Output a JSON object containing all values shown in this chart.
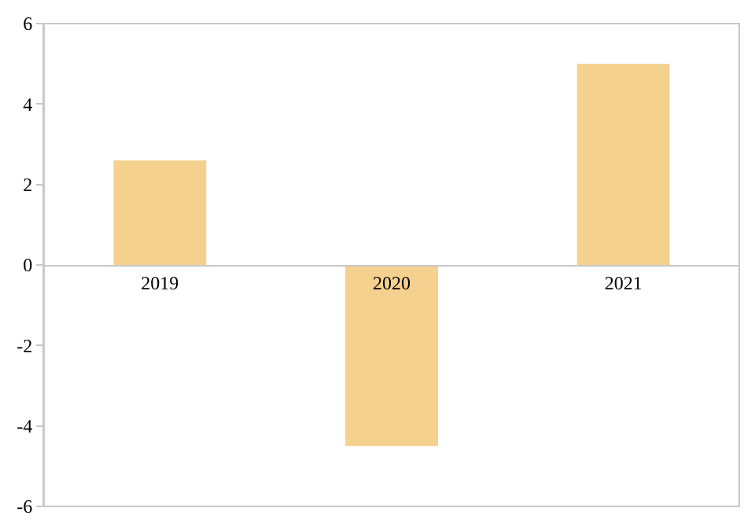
{
  "chart_data": {
    "type": "bar",
    "categories": [
      "2019",
      "2020",
      "2021"
    ],
    "values": [
      2.6,
      -4.5,
      5.0
    ],
    "color": "#f5d190",
    "ylim": [
      -6,
      6
    ],
    "yticks": [
      -6,
      -4,
      -2,
      0,
      2,
      4,
      6
    ],
    "grid": false
  }
}
